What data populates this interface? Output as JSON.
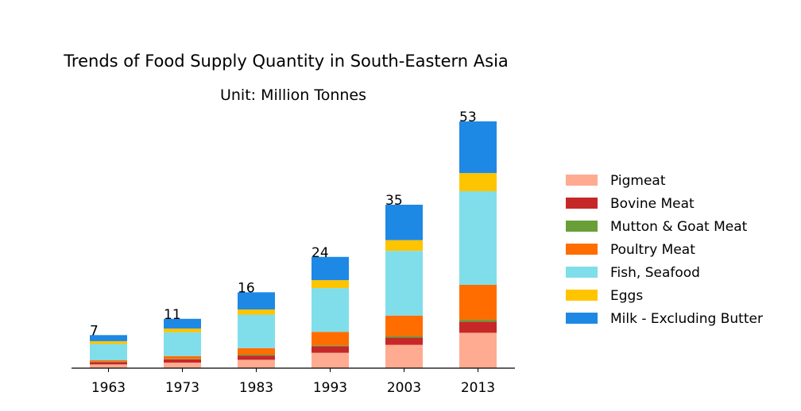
{
  "chart_data": {
    "type": "bar",
    "stacked": true,
    "title": "Trends of Food Supply Quantity in South-Eastern Asia",
    "subtitle": "Unit: Million Tonnes",
    "categories": [
      "1963",
      "1973",
      "1983",
      "1993",
      "2003",
      "2013"
    ],
    "totals": [
      "7",
      "11",
      "16",
      "24",
      "35",
      "53"
    ],
    "series": [
      {
        "name": "Pigmeat",
        "color": "#FFAB91",
        "values": [
          0.8,
          1.2,
          1.8,
          3.3,
          5.0,
          7.6
        ]
      },
      {
        "name": "Bovine Meat",
        "color": "#C62828",
        "values": [
          0.5,
          0.7,
          0.9,
          1.4,
          1.6,
          2.4
        ]
      },
      {
        "name": "Mutton & Goat Meat",
        "color": "#689F38",
        "values": [
          0.1,
          0.1,
          0.2,
          0.2,
          0.3,
          0.4
        ]
      },
      {
        "name": "Poultry Meat",
        "color": "#FF6D00",
        "values": [
          0.3,
          0.6,
          1.4,
          2.9,
          4.4,
          7.5
        ]
      },
      {
        "name": "Fish, Seafood",
        "color": "#80DEEA",
        "values": [
          3.5,
          5.1,
          7.2,
          9.4,
          13.9,
          20.1
        ]
      },
      {
        "name": "Eggs",
        "color": "#FFC400",
        "values": [
          0.6,
          0.8,
          1.1,
          1.7,
          2.3,
          3.9
        ]
      },
      {
        "name": "Milk - Excluding Butter",
        "color": "#1E88E5",
        "values": [
          1.3,
          2.1,
          3.7,
          5.0,
          7.6,
          11.1
        ]
      }
    ],
    "ylim": [
      0,
      55
    ],
    "grid": false,
    "legend_position": "right"
  }
}
